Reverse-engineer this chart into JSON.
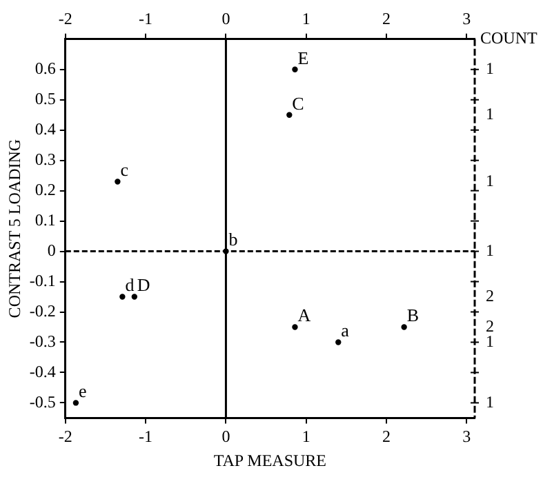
{
  "chart_data": {
    "type": "scatter",
    "xlabel": "TAP MEASURE",
    "ylabel": "CONTRAST 5 LOADING",
    "xlim": [
      -2,
      3.1
    ],
    "xticks": [
      -2,
      -1,
      0,
      1,
      2,
      3
    ],
    "x2lim": [
      -2,
      3.1
    ],
    "x2ticks": [
      -2,
      -1,
      0,
      1,
      2,
      3
    ],
    "ylim": [
      -0.55,
      0.7
    ],
    "yticks": [
      -0.5,
      -0.4,
      -0.3,
      -0.2,
      -0.1,
      0,
      0.1,
      0.2,
      0.3,
      0.4,
      0.5,
      0.6
    ],
    "marker": "circle",
    "series": [
      {
        "name": "E",
        "color": "#000000",
        "x": [
          0.86
        ],
        "values": [
          0.6
        ]
      },
      {
        "name": "C",
        "color": "#000000",
        "x": [
          0.79
        ],
        "values": [
          0.45
        ]
      },
      {
        "name": "c",
        "color": "#000000",
        "x": [
          -1.35
        ],
        "values": [
          0.23
        ]
      },
      {
        "name": "b",
        "color": "#000000",
        "x": [
          0
        ],
        "values": [
          0
        ]
      },
      {
        "name": "d",
        "color": "#000000",
        "x": [
          -1.29
        ],
        "values": [
          -0.15
        ]
      },
      {
        "name": "D",
        "color": "#000000",
        "x": [
          -1.14
        ],
        "values": [
          -0.15
        ]
      },
      {
        "name": "A",
        "color": "#000000",
        "x": [
          0.86
        ],
        "values": [
          -0.25
        ]
      },
      {
        "name": "B",
        "color": "#000000",
        "x": [
          2.22
        ],
        "values": [
          -0.25
        ]
      },
      {
        "name": "a",
        "color": "#000000",
        "x": [
          1.4
        ],
        "values": [
          -0.3
        ]
      },
      {
        "name": "e",
        "color": "#000000",
        "x": [
          -1.87
        ],
        "values": [
          -0.5
        ]
      }
    ],
    "ref_lines": [
      {
        "axis": "x",
        "value": 0,
        "line_style": "solid"
      },
      {
        "axis": "y",
        "value": 0,
        "line_style": "dashed"
      }
    ],
    "annotations": [
      "COUNT",
      "1",
      "1",
      "1",
      "1",
      "2",
      "2",
      "1",
      "1"
    ]
  }
}
